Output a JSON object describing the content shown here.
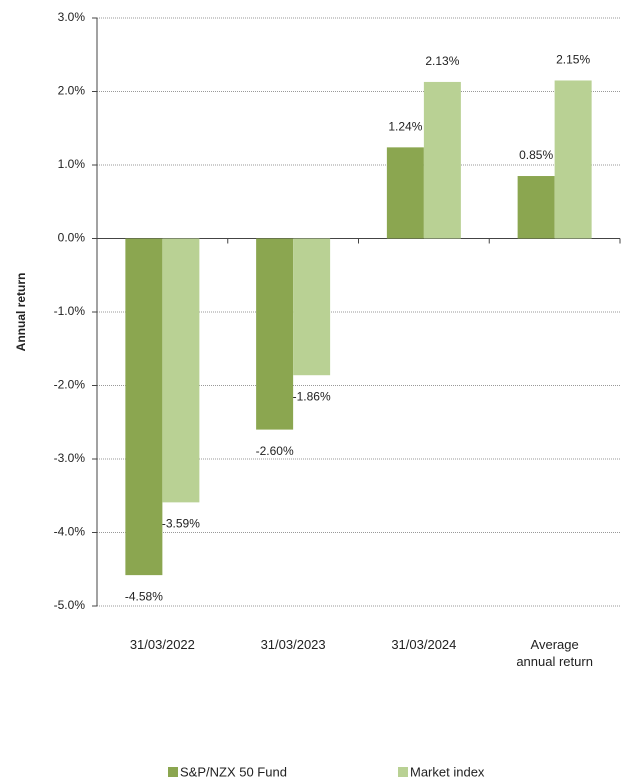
{
  "chart_data": {
    "type": "bar",
    "y_label": "Annual return",
    "categories": [
      "31/03/2022",
      "31/03/2023",
      "31/03/2024",
      "Average annual return"
    ],
    "series": [
      {
        "name": "S&P/NZX 50 Fund",
        "color": "#8ba650",
        "values": [
          -4.58,
          -2.6,
          1.24,
          0.85
        ],
        "value_labels": [
          "-4.58%",
          "-2.60%",
          "1.24%",
          "0.85%"
        ]
      },
      {
        "name": "Market index",
        "color": "#b9d194",
        "values": [
          -3.59,
          -1.86,
          2.13,
          2.15
        ],
        "value_labels": [
          "-3.59%",
          "-1.86%",
          "2.13%",
          "2.15%"
        ]
      }
    ],
    "ylim": [
      -5,
      3
    ],
    "yticks": [
      {
        "value": -5,
        "label": "-5.0%"
      },
      {
        "value": -4,
        "label": "-4.0%"
      },
      {
        "value": -3,
        "label": "-3.0%"
      },
      {
        "value": -2,
        "label": "-2.0%"
      },
      {
        "value": -1,
        "label": "-1.0%"
      },
      {
        "value": 0,
        "label": "0.0%"
      },
      {
        "value": 1,
        "label": "1.0%"
      },
      {
        "value": 2,
        "label": "2.0%"
      },
      {
        "value": 3,
        "label": "3.0%"
      }
    ],
    "grid": true,
    "legend": "bottom"
  }
}
